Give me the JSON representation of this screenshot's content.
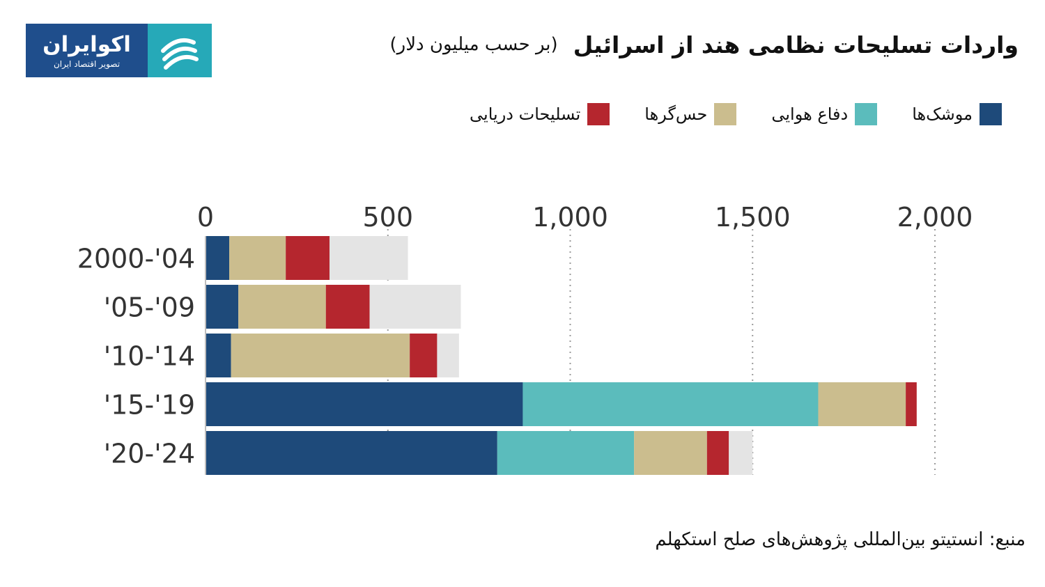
{
  "logo": {
    "name": "اکوایران",
    "tagline": "تصویر اقتصاد ایران",
    "colors": {
      "primary": "#1f4e8c",
      "accent": "#26a9b8"
    }
  },
  "title": {
    "main": "واردات تسلیحات نظامی هند از اسرائیل",
    "sub": "(بر حسب میلیون دلار)"
  },
  "source": "منبع: انستیتو بین‌المللی پژوهش‌های صلح استکهلم",
  "chart_data": {
    "type": "bar",
    "orientation": "horizontal",
    "stacked": true,
    "title": "واردات تسلیحات نظامی هند از اسرائیل",
    "subtitle": "(بر حسب میلیون دلار)",
    "categories": [
      "2000-'04",
      "'05-'09",
      "'10-'14",
      "'15-'19",
      "'20-'24"
    ],
    "x_ticks": [
      0,
      500,
      1000,
      1500,
      2000
    ],
    "x_tick_labels": [
      "0",
      "500",
      "1,000",
      "1,500",
      "2,000"
    ],
    "xlim": [
      0,
      2000
    ],
    "x_axis_position": "top",
    "grid": "vertical-dotted",
    "legend_position": "top",
    "series": [
      {
        "name": "موشک‌ها",
        "color": "#1e4a7a",
        "values": [
          65,
          90,
          70,
          870,
          800
        ]
      },
      {
        "name": "دفاع هوایی",
        "color": "#5bbcbc",
        "values": [
          0,
          0,
          0,
          810,
          375
        ]
      },
      {
        "name": "حس‌گرها",
        "color": "#cbbd8e",
        "values": [
          155,
          240,
          490,
          240,
          200
        ]
      },
      {
        "name": "تسلیحات دریایی",
        "color": "#b5262e",
        "values": [
          120,
          120,
          75,
          30,
          60
        ]
      },
      {
        "color": "#e4e4e4",
        "values": [
          215,
          250,
          60,
          0,
          65
        ]
      }
    ]
  }
}
